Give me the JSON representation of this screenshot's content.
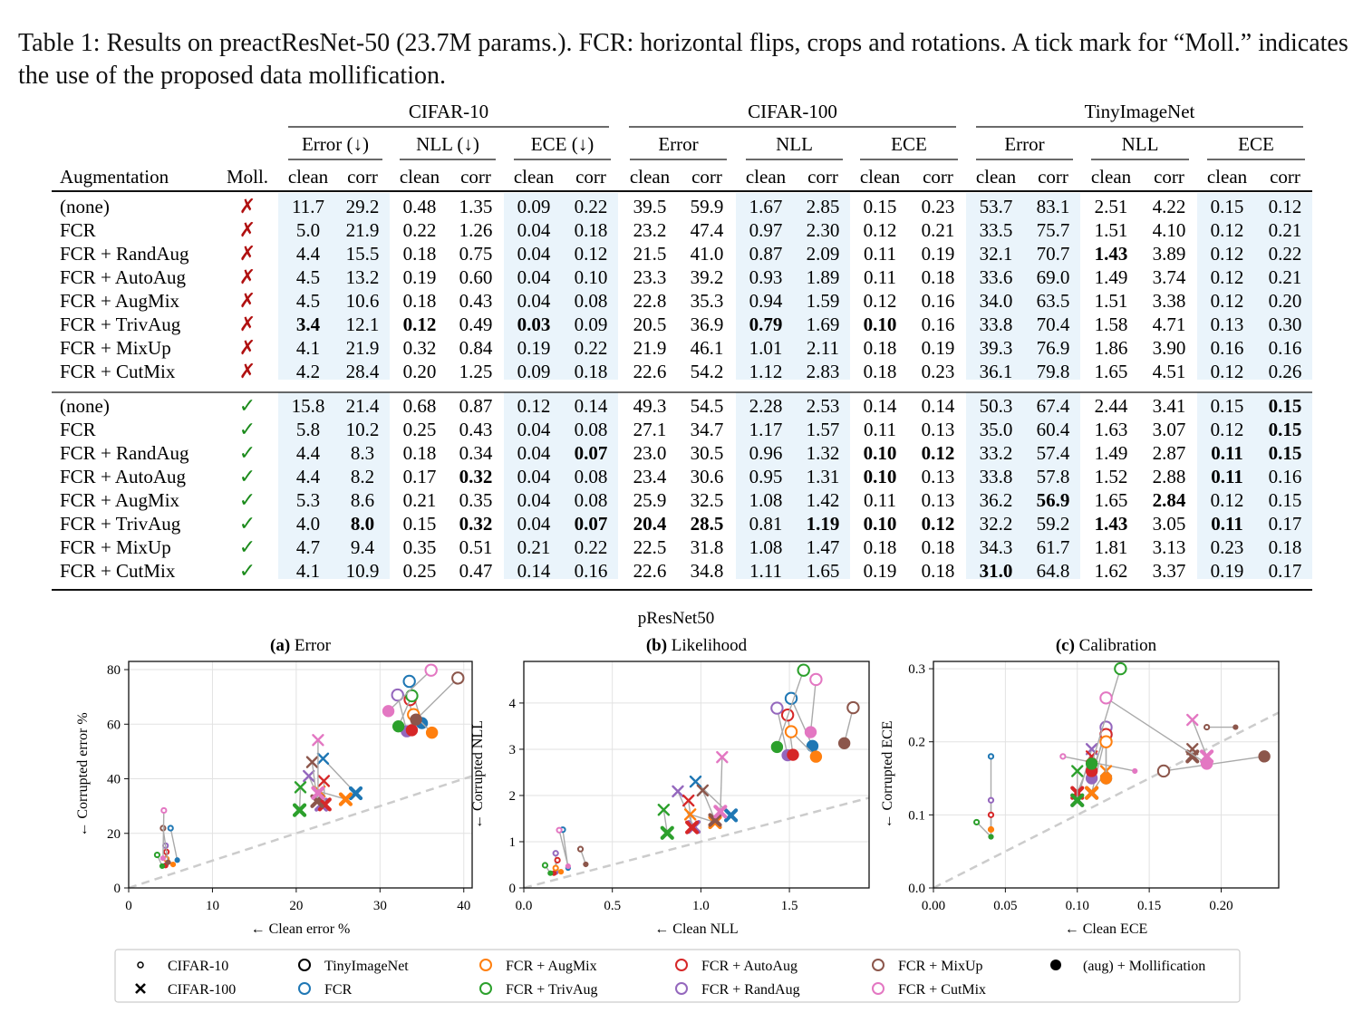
{
  "caption": "Table 1: Results on preactResNet-50 (23.7M params.). FCR: horizontal flips, crops and rotations. A tick mark for “Moll.” indicates the use of the proposed data mollification.",
  "table": {
    "groups": [
      "CIFAR-10",
      "CIFAR-100",
      "TinyImageNet"
    ],
    "cifar10_metrics": [
      "Error (↓)",
      "NLL (↓)",
      "ECE (↓)"
    ],
    "other_metrics": [
      "Error",
      "NLL",
      "ECE"
    ],
    "sub_headers": [
      "clean",
      "corr"
    ],
    "col_aug": "Augmentation",
    "col_moll": "Moll.",
    "cross_mark": "✗",
    "tick_mark": "✓",
    "rows": [
      {
        "aug": "(none)",
        "moll": false,
        "v": [
          "11.7",
          "29.2",
          "0.48",
          "1.35",
          "0.09",
          "0.22",
          "39.5",
          "59.9",
          "1.67",
          "2.85",
          "0.15",
          "0.23",
          "53.7",
          "83.1",
          "2.51",
          "4.22",
          "0.15",
          "0.12"
        ],
        "bold": []
      },
      {
        "aug": "FCR",
        "moll": false,
        "v": [
          "5.0",
          "21.9",
          "0.22",
          "1.26",
          "0.04",
          "0.18",
          "23.2",
          "47.4",
          "0.97",
          "2.30",
          "0.12",
          "0.21",
          "33.5",
          "75.7",
          "1.51",
          "4.10",
          "0.12",
          "0.21"
        ],
        "bold": []
      },
      {
        "aug": "FCR + RandAug",
        "moll": false,
        "v": [
          "4.4",
          "15.5",
          "0.18",
          "0.75",
          "0.04",
          "0.12",
          "21.5",
          "41.0",
          "0.87",
          "2.09",
          "0.11",
          "0.19",
          "32.1",
          "70.7",
          "1.43",
          "3.89",
          "0.12",
          "0.22"
        ],
        "bold": [
          14
        ]
      },
      {
        "aug": "FCR + AutoAug",
        "moll": false,
        "v": [
          "4.5",
          "13.2",
          "0.19",
          "0.60",
          "0.04",
          "0.10",
          "23.3",
          "39.2",
          "0.93",
          "1.89",
          "0.11",
          "0.18",
          "33.6",
          "69.0",
          "1.49",
          "3.74",
          "0.12",
          "0.21"
        ],
        "bold": []
      },
      {
        "aug": "FCR + AugMix",
        "moll": false,
        "v": [
          "4.5",
          "10.6",
          "0.18",
          "0.43",
          "0.04",
          "0.08",
          "22.8",
          "35.3",
          "0.94",
          "1.59",
          "0.12",
          "0.16",
          "34.0",
          "63.5",
          "1.51",
          "3.38",
          "0.12",
          "0.20"
        ],
        "bold": []
      },
      {
        "aug": "FCR + TrivAug",
        "moll": false,
        "v": [
          "3.4",
          "12.1",
          "0.12",
          "0.49",
          "0.03",
          "0.09",
          "20.5",
          "36.9",
          "0.79",
          "1.69",
          "0.10",
          "0.16",
          "33.8",
          "70.4",
          "1.58",
          "4.71",
          "0.13",
          "0.30"
        ],
        "bold": [
          0,
          2,
          4,
          8,
          10
        ]
      },
      {
        "aug": "FCR + MixUp",
        "moll": false,
        "v": [
          "4.1",
          "21.9",
          "0.32",
          "0.84",
          "0.19",
          "0.22",
          "21.9",
          "46.1",
          "1.01",
          "2.11",
          "0.18",
          "0.19",
          "39.3",
          "76.9",
          "1.86",
          "3.90",
          "0.16",
          "0.16"
        ],
        "bold": []
      },
      {
        "aug": "FCR + CutMix",
        "moll": false,
        "v": [
          "4.2",
          "28.4",
          "0.20",
          "1.25",
          "0.09",
          "0.18",
          "22.6",
          "54.2",
          "1.12",
          "2.83",
          "0.18",
          "0.23",
          "36.1",
          "79.8",
          "1.65",
          "4.51",
          "0.12",
          "0.26"
        ],
        "bold": []
      },
      {
        "aug": "(none)",
        "moll": true,
        "v": [
          "15.8",
          "21.4",
          "0.68",
          "0.87",
          "0.12",
          "0.14",
          "49.3",
          "54.5",
          "2.28",
          "2.53",
          "0.14",
          "0.14",
          "50.3",
          "67.4",
          "2.44",
          "3.41",
          "0.15",
          "0.15"
        ],
        "bold": [
          17
        ]
      },
      {
        "aug": "FCR",
        "moll": true,
        "v": [
          "5.8",
          "10.2",
          "0.25",
          "0.43",
          "0.04",
          "0.08",
          "27.1",
          "34.7",
          "1.17",
          "1.57",
          "0.11",
          "0.13",
          "35.0",
          "60.4",
          "1.63",
          "3.07",
          "0.12",
          "0.15"
        ],
        "bold": [
          17
        ]
      },
      {
        "aug": "FCR + RandAug",
        "moll": true,
        "v": [
          "4.4",
          "8.3",
          "0.18",
          "0.34",
          "0.04",
          "0.07",
          "23.0",
          "30.5",
          "0.96",
          "1.32",
          "0.10",
          "0.12",
          "33.2",
          "57.4",
          "1.49",
          "2.87",
          "0.11",
          "0.15"
        ],
        "bold": [
          5,
          10,
          11,
          16,
          17
        ]
      },
      {
        "aug": "FCR + AutoAug",
        "moll": true,
        "v": [
          "4.4",
          "8.2",
          "0.17",
          "0.32",
          "0.04",
          "0.08",
          "23.4",
          "30.6",
          "0.95",
          "1.31",
          "0.10",
          "0.13",
          "33.8",
          "57.8",
          "1.52",
          "2.88",
          "0.11",
          "0.16"
        ],
        "bold": [
          3,
          10,
          16
        ]
      },
      {
        "aug": "FCR + AugMix",
        "moll": true,
        "v": [
          "5.3",
          "8.6",
          "0.21",
          "0.35",
          "0.04",
          "0.08",
          "25.9",
          "32.5",
          "1.08",
          "1.42",
          "0.11",
          "0.13",
          "36.2",
          "56.9",
          "1.65",
          "2.84",
          "0.12",
          "0.15"
        ],
        "bold": [
          13,
          15
        ]
      },
      {
        "aug": "FCR + TrivAug",
        "moll": true,
        "v": [
          "4.0",
          "8.0",
          "0.15",
          "0.32",
          "0.04",
          "0.07",
          "20.4",
          "28.5",
          "0.81",
          "1.19",
          "0.10",
          "0.12",
          "32.2",
          "59.2",
          "1.43",
          "3.05",
          "0.11",
          "0.17"
        ],
        "bold": [
          1,
          3,
          5,
          6,
          7,
          9,
          10,
          11,
          14,
          16
        ]
      },
      {
        "aug": "FCR + MixUp",
        "moll": true,
        "v": [
          "4.7",
          "9.4",
          "0.35",
          "0.51",
          "0.21",
          "0.22",
          "22.5",
          "31.8",
          "1.08",
          "1.47",
          "0.18",
          "0.18",
          "34.3",
          "61.7",
          "1.81",
          "3.13",
          "0.23",
          "0.18"
        ],
        "bold": []
      },
      {
        "aug": "FCR + CutMix",
        "moll": true,
        "v": [
          "4.1",
          "10.9",
          "0.25",
          "0.47",
          "0.14",
          "0.16",
          "22.6",
          "34.8",
          "1.11",
          "1.65",
          "0.19",
          "0.18",
          "31.0",
          "64.8",
          "1.62",
          "3.37",
          "0.19",
          "0.17"
        ],
        "bold": [
          12
        ]
      }
    ]
  },
  "colors": {
    "FCR": "#1f77b4",
    "FCR + AugMix": "#ff7f0e",
    "FCR + TrivAug": "#2ca02c",
    "FCR + AutoAug": "#d62728",
    "FCR + RandAug": "#9467bd",
    "FCR + MixUp": "#8c564b",
    "FCR + CutMix": "#e377c2",
    "tick": "#1a8a1a",
    "cross": "#b01010",
    "shade": "#eaf4fb"
  },
  "figure": {
    "suptitle": "pResNet50",
    "legend": [
      {
        "label": "CIFAR-10",
        "marker": "small-circle",
        "color": "#000000"
      },
      {
        "label": "CIFAR-100",
        "marker": "x",
        "color": "#000000"
      },
      {
        "label": "TinyImageNet",
        "marker": "big-circle",
        "color": "#000000"
      },
      {
        "label": "FCR",
        "marker": "circle",
        "color": "#1f77b4"
      },
      {
        "label": "FCR + AugMix",
        "marker": "circle",
        "color": "#ff7f0e"
      },
      {
        "label": "FCR + TrivAug",
        "marker": "circle",
        "color": "#2ca02c"
      },
      {
        "label": "FCR + AutoAug",
        "marker": "circle",
        "color": "#d62728"
      },
      {
        "label": "FCR + RandAug",
        "marker": "circle",
        "color": "#9467bd"
      },
      {
        "label": "FCR + MixUp",
        "marker": "circle",
        "color": "#8c564b"
      },
      {
        "label": "FCR + CutMix",
        "marker": "circle",
        "color": "#e377c2"
      },
      {
        "label": "(aug) + Mollification",
        "marker": "filled-circle",
        "color": "#000000"
      }
    ]
  },
  "chart_data": [
    {
      "type": "scatter",
      "title_bold": "(a)",
      "title": "Error",
      "xlabel": "← Clean error %",
      "ylabel": "← Corrupted error %",
      "xlim": [
        0,
        41
      ],
      "ylim": [
        0,
        83
      ],
      "xticks": [
        0,
        10,
        20,
        30,
        40
      ],
      "yticks": [
        0,
        20,
        40,
        60,
        80
      ],
      "grid": true,
      "diagonal": true,
      "metric_index": 0
    },
    {
      "type": "scatter",
      "title_bold": "(b)",
      "title": "Likelihood",
      "xlabel": "← Clean NLL",
      "ylabel": "← Corrupted NLL",
      "xlim": [
        0,
        1.95
      ],
      "ylim": [
        0,
        4.9
      ],
      "xticks": [
        0,
        0.5,
        1,
        1.5
      ],
      "yticks": [
        0,
        1,
        2,
        3,
        4
      ],
      "xtick_labels": [
        "0.0",
        "0.5",
        "1.0",
        "1.5"
      ],
      "ytick_labels": [
        "0",
        "1",
        "2",
        "3",
        "4"
      ],
      "grid": true,
      "diagonal": true,
      "metric_index": 2
    },
    {
      "type": "scatter",
      "title_bold": "(c)",
      "title": "Calibration",
      "xlabel": "← Clean ECE",
      "ylabel": "← Corrupted ECE",
      "xlim": [
        0,
        0.24
      ],
      "ylim": [
        0,
        0.31
      ],
      "xticks": [
        0,
        0.05,
        0.1,
        0.15,
        0.2
      ],
      "yticks": [
        0,
        0.1,
        0.2,
        0.3
      ],
      "xtick_labels": [
        "0.00",
        "0.05",
        "0.10",
        "0.15",
        "0.20"
      ],
      "ytick_labels": [
        "0.0",
        "0.1",
        "0.2",
        "0.3"
      ],
      "grid": true,
      "diagonal": true,
      "metric_index": 4
    }
  ]
}
